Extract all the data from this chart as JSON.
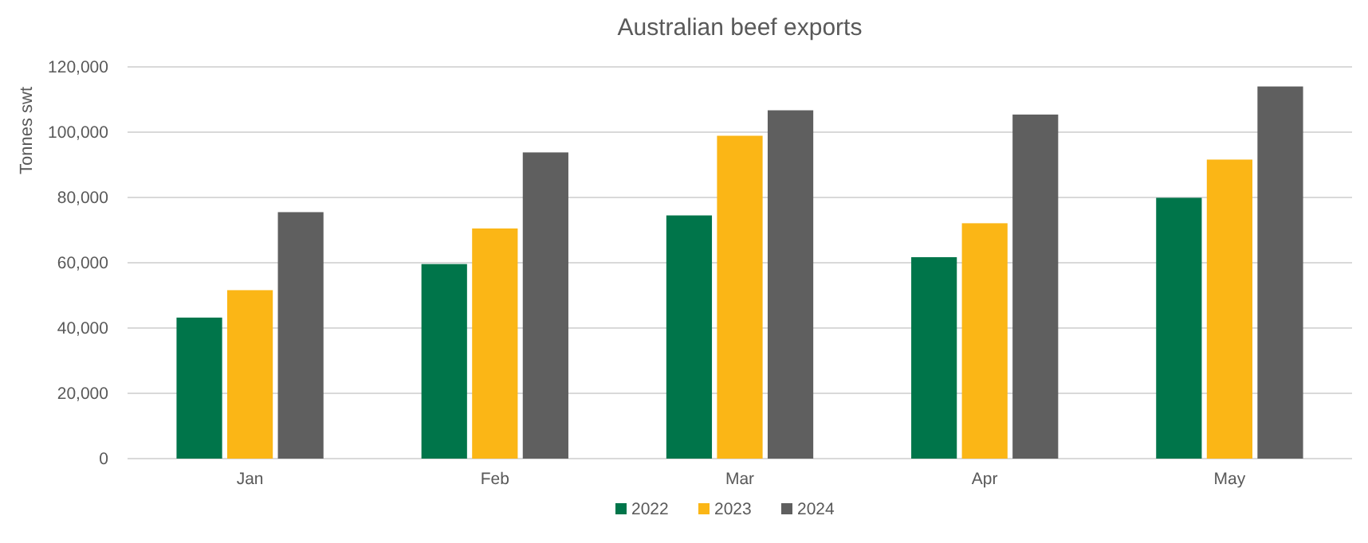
{
  "chart_data": {
    "type": "bar",
    "title": "Australian beef exports",
    "ylabel": "Tonnes swt",
    "categories": [
      "Jan",
      "Feb",
      "Mar",
      "Apr",
      "May"
    ],
    "series": [
      {
        "name": "2022",
        "color": "#00754a",
        "values": [
          43200,
          59600,
          74500,
          61700,
          79900
        ]
      },
      {
        "name": "2023",
        "color": "#fbb616",
        "values": [
          51600,
          70500,
          98900,
          72100,
          91600
        ]
      },
      {
        "name": "2024",
        "color": "#5f5f5f",
        "values": [
          75500,
          93800,
          106700,
          105400,
          114000
        ]
      }
    ],
    "ylim": [
      0,
      120000
    ],
    "yticks": [
      {
        "value": 0,
        "label": "0"
      },
      {
        "value": 20000,
        "label": "20,000"
      },
      {
        "value": 40000,
        "label": "40,000"
      },
      {
        "value": 60000,
        "label": "60,000"
      },
      {
        "value": 80000,
        "label": "80,000"
      },
      {
        "value": 100000,
        "label": "100,000"
      },
      {
        "value": 120000,
        "label": "120,000"
      }
    ],
    "grid": "y",
    "legend": "bottom"
  }
}
